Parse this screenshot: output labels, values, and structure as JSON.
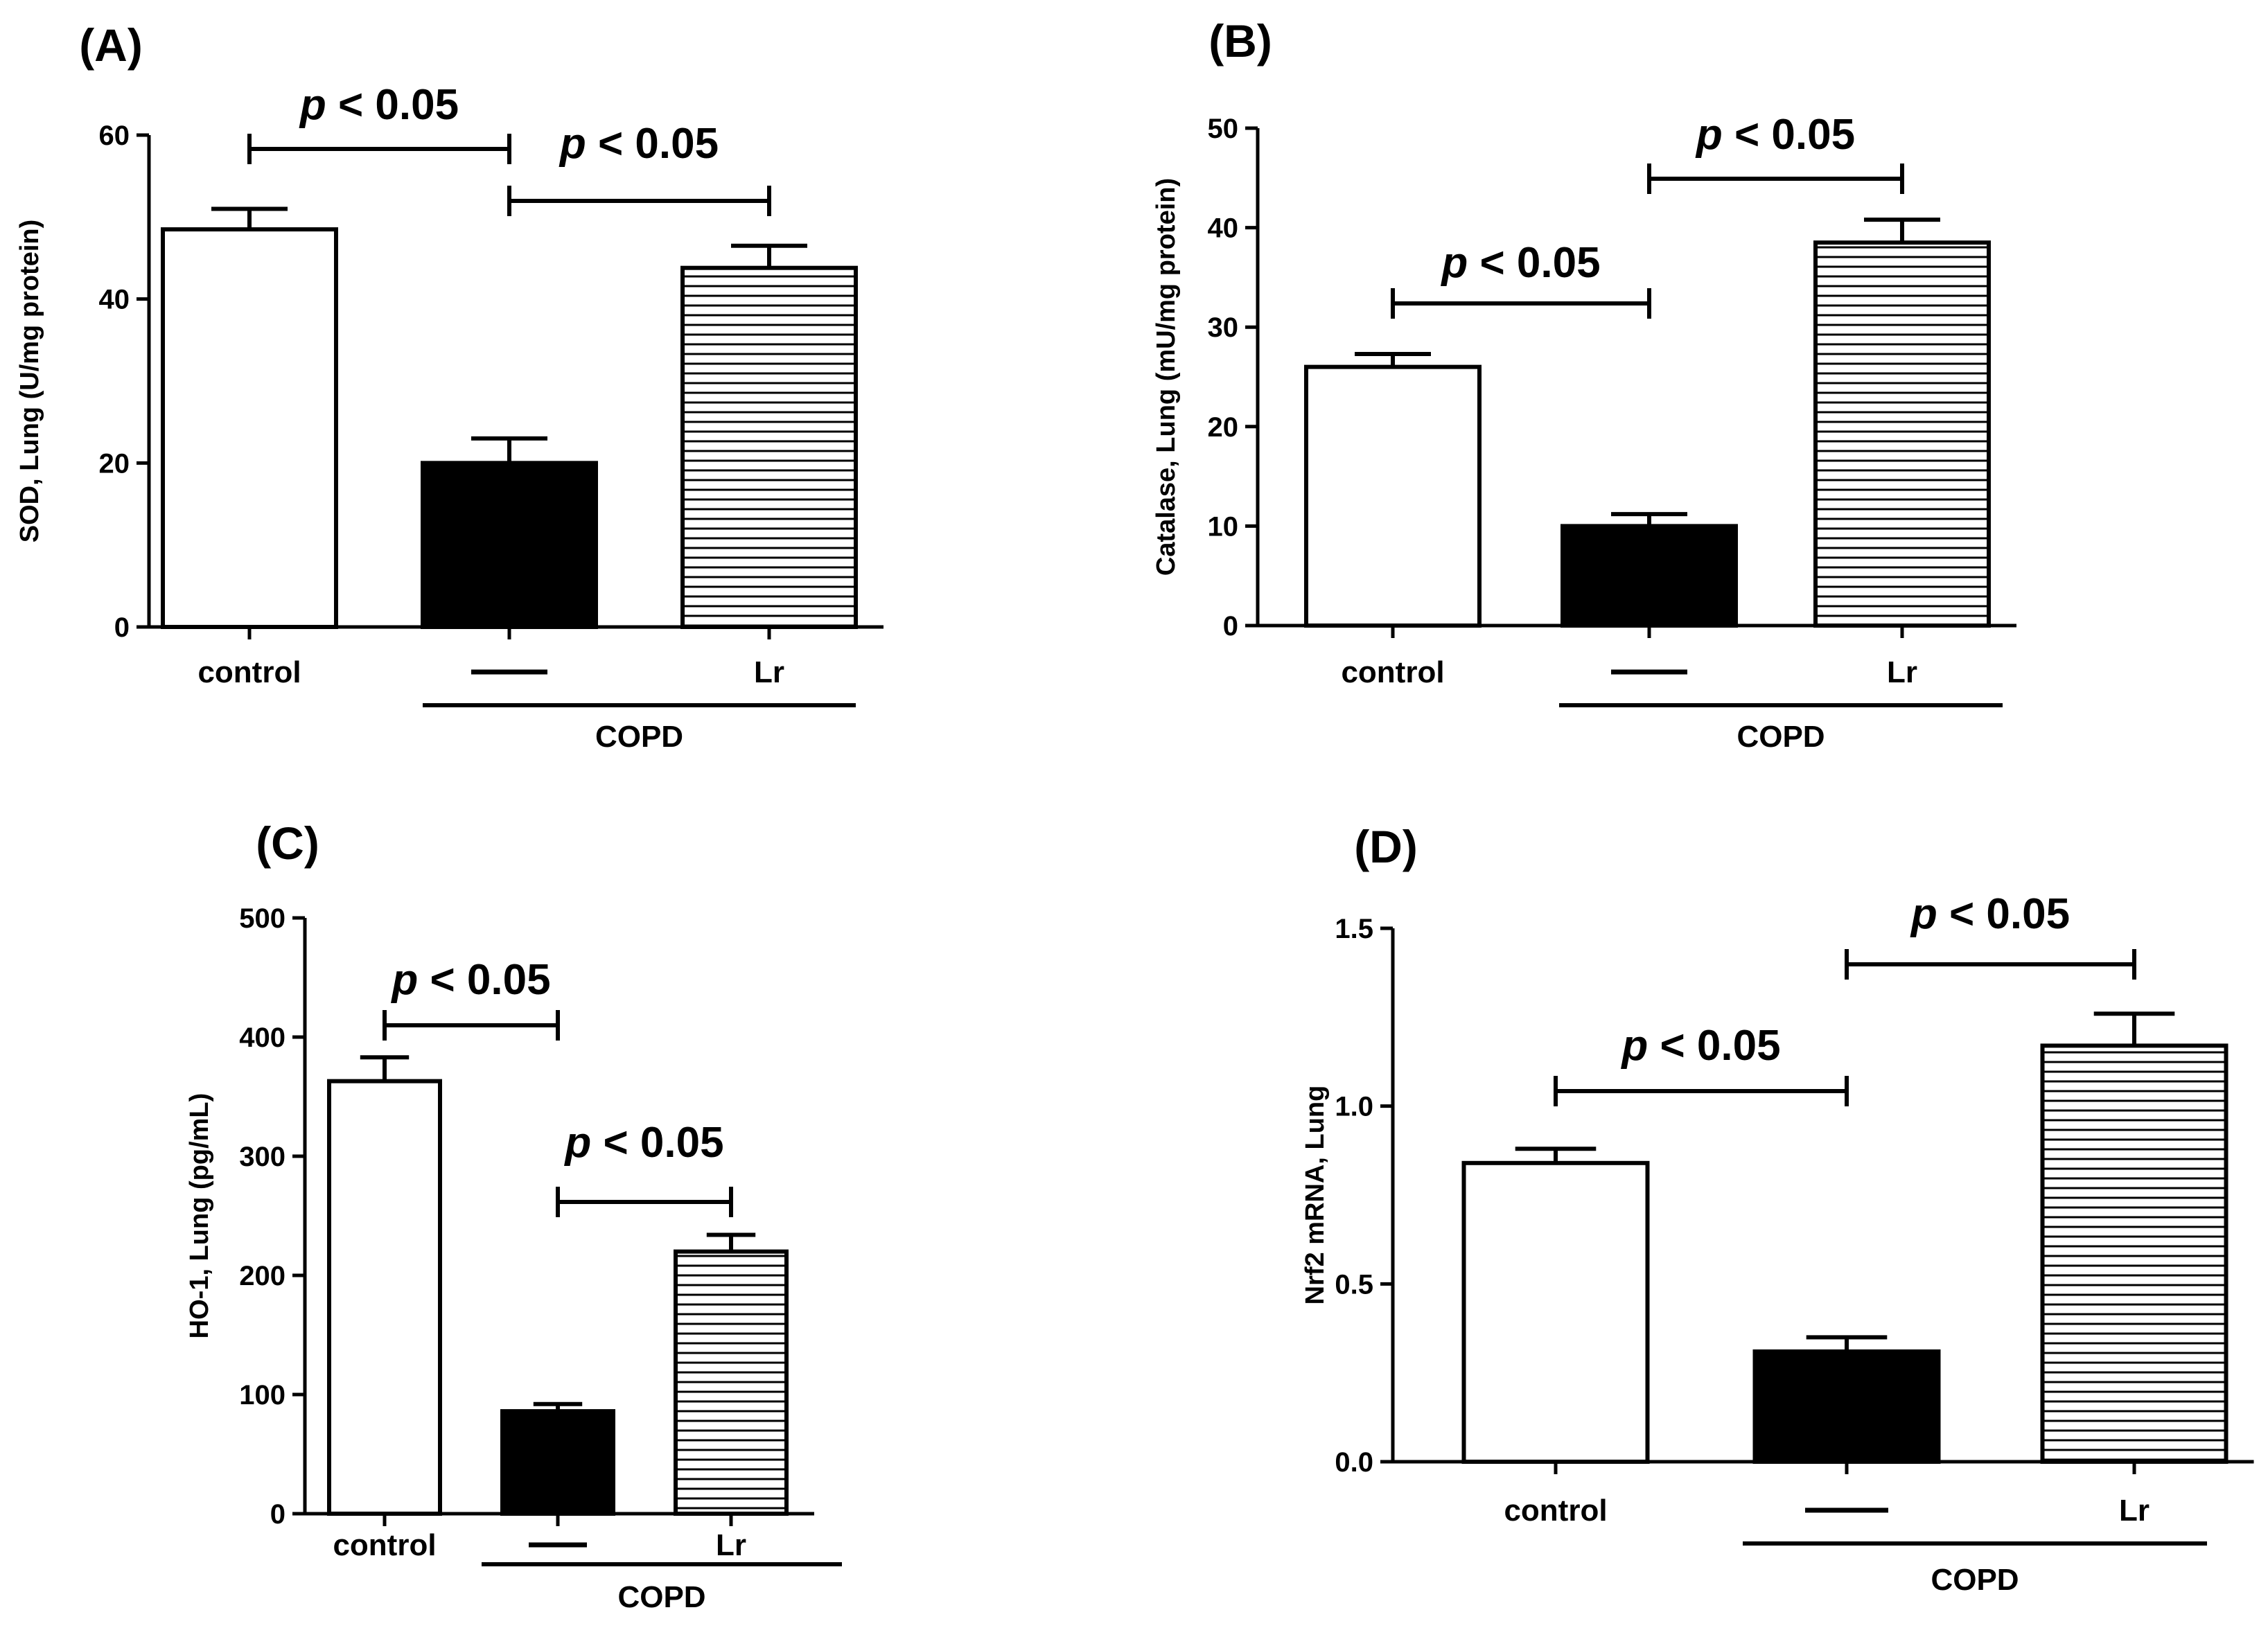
{
  "chart_data": [
    {
      "panel": "(A)",
      "type": "bar",
      "ylabel": "SOD, Lung (U/mg protein)",
      "ylim": [
        0,
        60
      ],
      "yticks": [
        "0",
        "20",
        "40",
        "60"
      ],
      "categories": [
        "control",
        "—",
        "Lr"
      ],
      "values": [
        48.5,
        20,
        43.8
      ],
      "errors": [
        2.5,
        3,
        2.7
      ],
      "fills": [
        "white",
        "black",
        "hatched"
      ],
      "group_label": "COPD",
      "group_span": [
        1,
        2
      ],
      "comparisons": [
        {
          "from": 0,
          "to": 1,
          "label_prefix": "p",
          "label_rest": " < 0.05"
        },
        {
          "from": 1,
          "to": 2,
          "label_prefix": "p",
          "label_rest": " < 0.05"
        }
      ]
    },
    {
      "panel": "(B)",
      "type": "bar",
      "ylabel": "Catalase, Lung (mU/mg protein)",
      "ylim": [
        0,
        50
      ],
      "yticks": [
        "0",
        "10",
        "20",
        "30",
        "40",
        "50"
      ],
      "categories": [
        "control",
        "—",
        "Lr"
      ],
      "values": [
        26,
        10,
        38.5
      ],
      "errors": [
        1.3,
        1.2,
        2.3
      ],
      "fills": [
        "white",
        "black",
        "hatched"
      ],
      "group_label": "COPD",
      "group_span": [
        1,
        2
      ],
      "comparisons": [
        {
          "from": 0,
          "to": 1,
          "label_prefix": "p",
          "label_rest": " < 0.05"
        },
        {
          "from": 1,
          "to": 2,
          "label_prefix": "p",
          "label_rest": " < 0.05"
        }
      ]
    },
    {
      "panel": "(C)",
      "type": "bar",
      "ylabel": "HO-1, Lung (pg/mL)",
      "ylim": [
        0,
        500
      ],
      "yticks": [
        "0",
        "100",
        "200",
        "300",
        "400",
        "500"
      ],
      "categories": [
        "control",
        "—",
        "Lr"
      ],
      "values": [
        363,
        86,
        220
      ],
      "errors": [
        20,
        6,
        14
      ],
      "fills": [
        "white",
        "black",
        "hatched"
      ],
      "group_label": "COPD",
      "group_span": [
        1,
        2
      ],
      "comparisons": [
        {
          "from": 0,
          "to": 1,
          "label_prefix": "p",
          "label_rest": " < 0.05"
        },
        {
          "from": 1,
          "to": 2,
          "label_prefix": "p",
          "label_rest": " < 0.05"
        }
      ]
    },
    {
      "panel": "(D)",
      "type": "bar",
      "ylabel": "Nrf2 mRNA, Lung",
      "ylim": [
        0,
        1.5
      ],
      "yticks": [
        "0.0",
        "0.5",
        "1.0",
        "1.5"
      ],
      "categories": [
        "control",
        "—",
        "Lr"
      ],
      "values": [
        0.84,
        0.31,
        1.17
      ],
      "errors": [
        0.04,
        0.04,
        0.09
      ],
      "fills": [
        "white",
        "black",
        "hatched"
      ],
      "group_label": "COPD",
      "group_span": [
        1,
        2
      ],
      "comparisons": [
        {
          "from": 0,
          "to": 1,
          "label_prefix": "p",
          "label_rest": " < 0.05"
        },
        {
          "from": 1,
          "to": 2,
          "label_prefix": "p",
          "label_rest": " < 0.05"
        }
      ]
    }
  ]
}
